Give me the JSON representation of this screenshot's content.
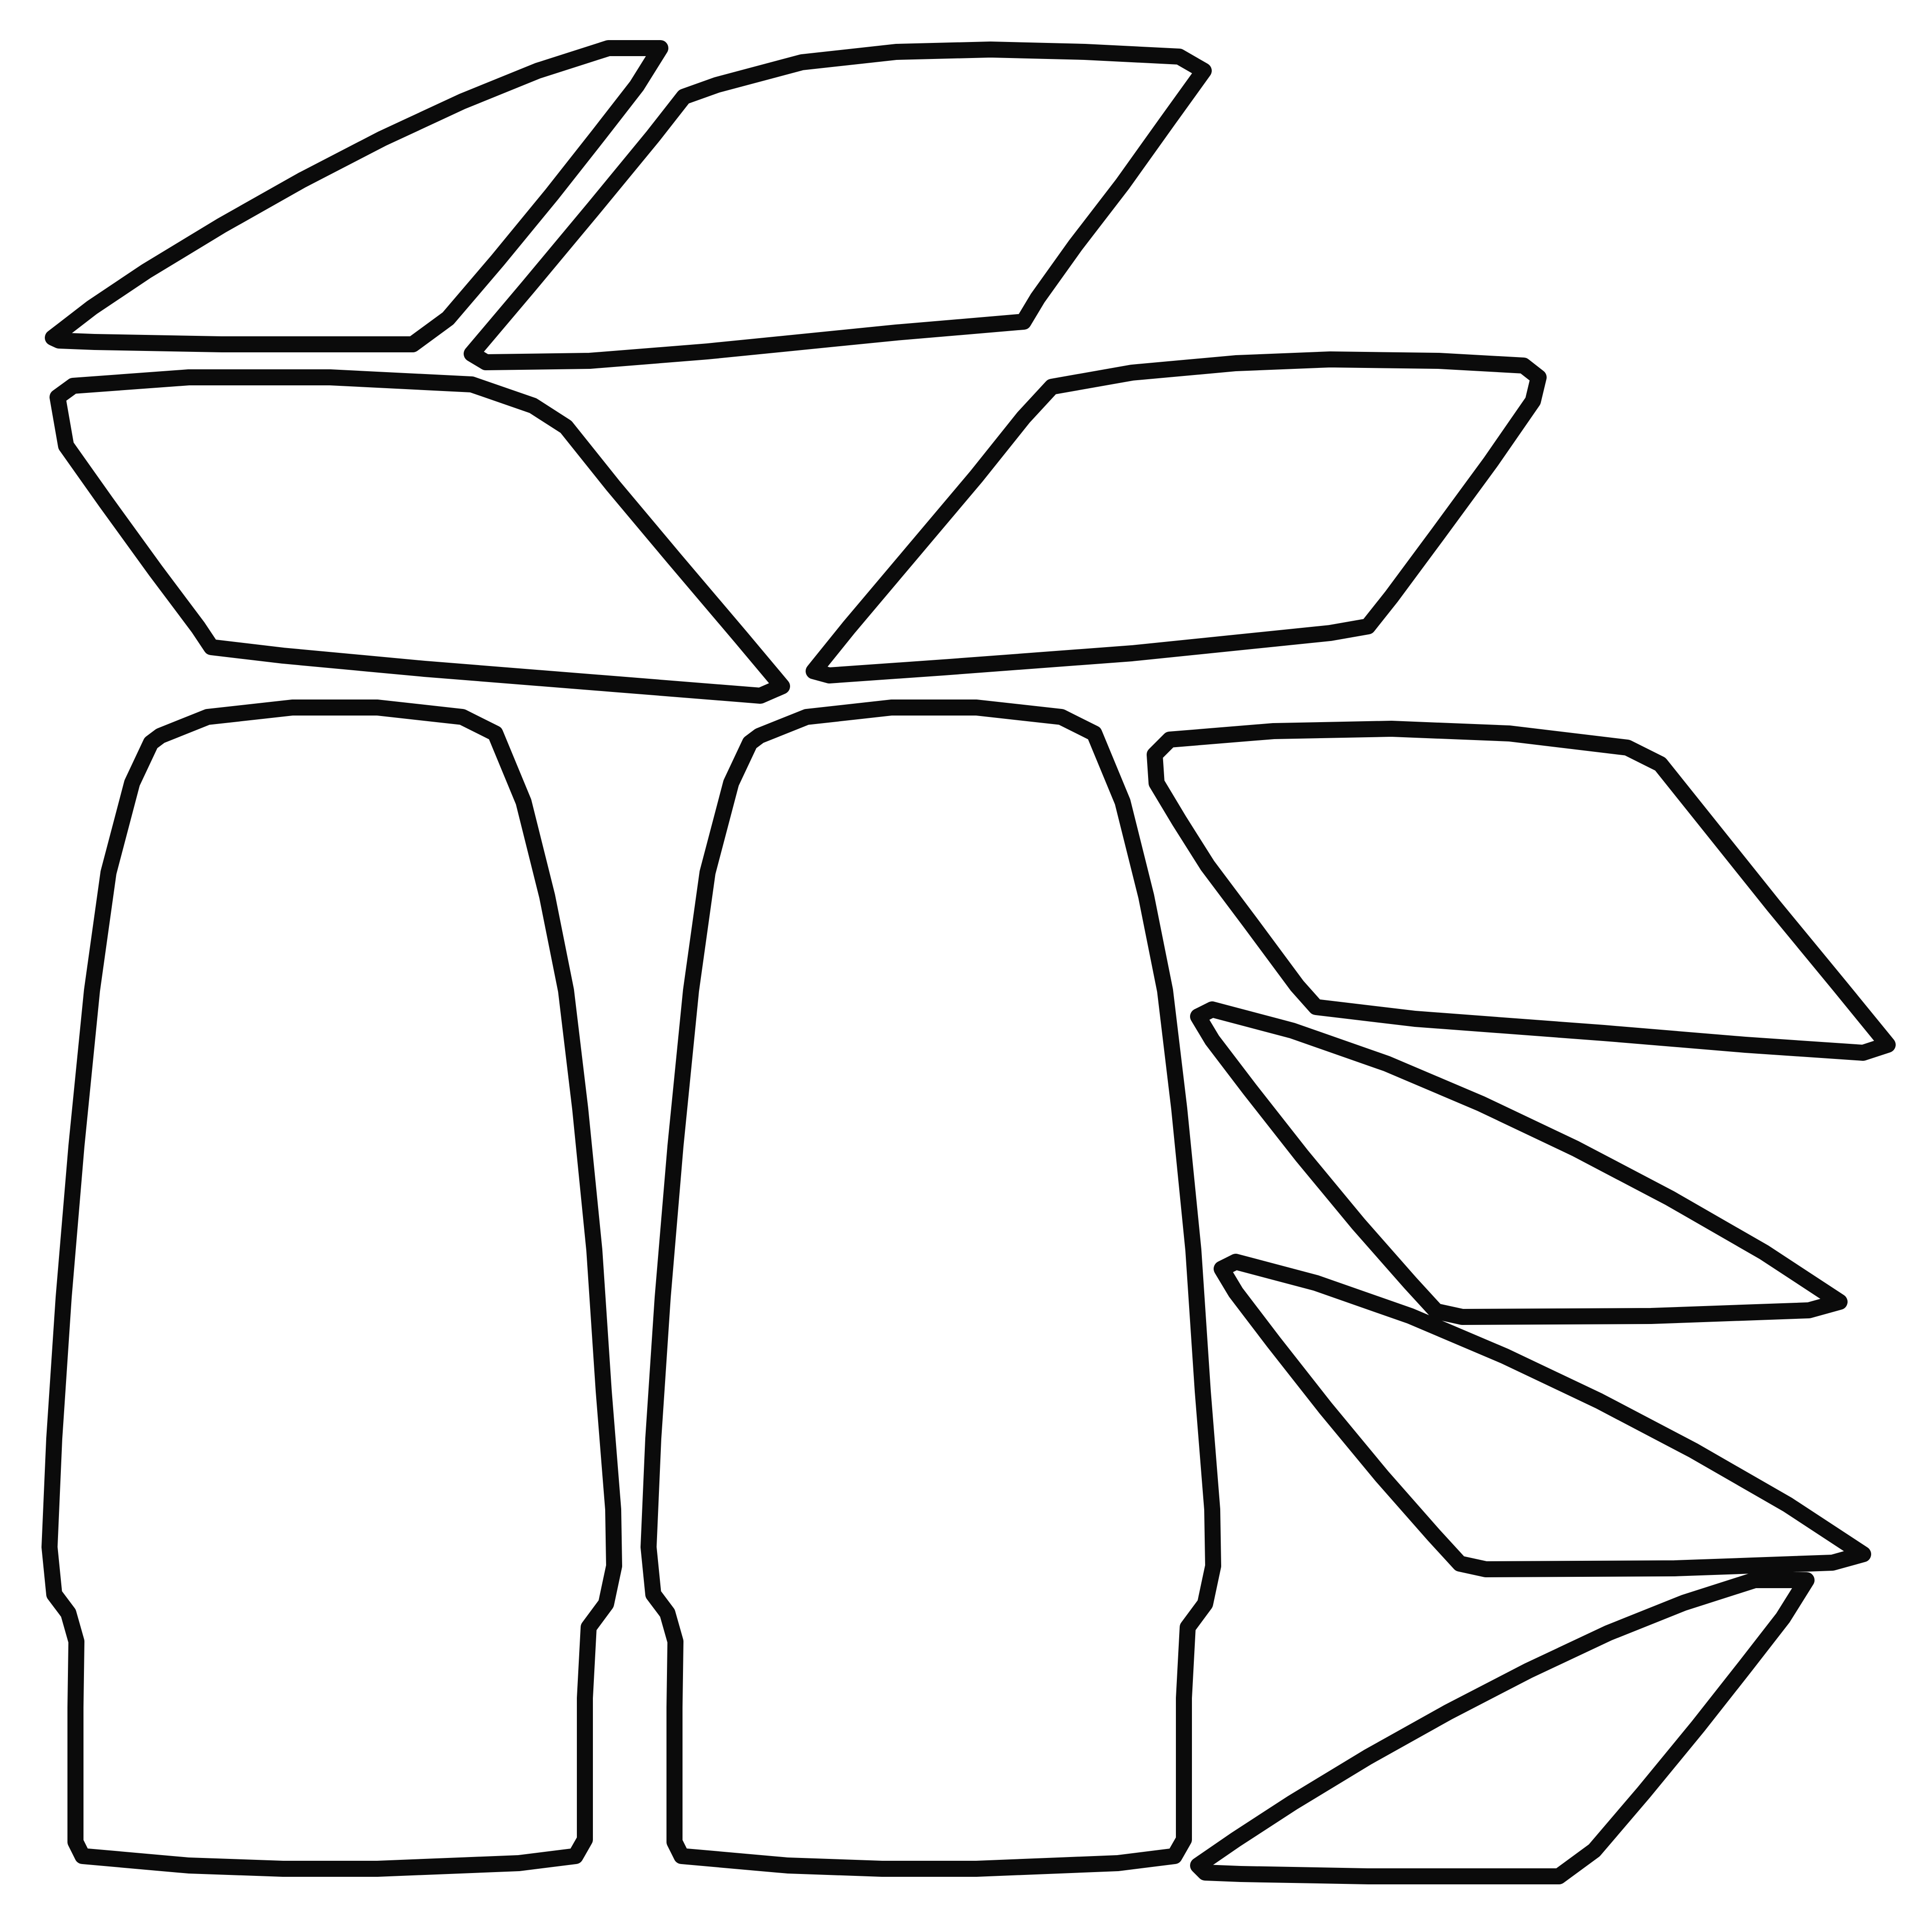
{
  "diagram": {
    "kind": "cut-pattern outline sheet",
    "text_labels": [],
    "colors": {
      "outline": "#0b0b0b",
      "background": "#ffffff"
    },
    "pieces": [
      {
        "id": "top-left-triangle",
        "shape": "triangular panel"
      },
      {
        "id": "top-center-parallelogram",
        "shape": "parallelogram panel"
      },
      {
        "id": "mid-left-parallelogram",
        "shape": "parallelogram panel"
      },
      {
        "id": "mid-center-parallelogram",
        "shape": "parallelogram panel"
      },
      {
        "id": "left-tall-panel",
        "shape": "tall tapered panel"
      },
      {
        "id": "center-tall-panel",
        "shape": "tall tapered panel"
      },
      {
        "id": "right-parallelogram",
        "shape": "parallelogram panel"
      },
      {
        "id": "right-upper-triangle",
        "shape": "triangular panel"
      },
      {
        "id": "right-middle-triangle",
        "shape": "triangular panel"
      },
      {
        "id": "right-bottom-triangle",
        "shape": "triangular panel"
      }
    ]
  }
}
